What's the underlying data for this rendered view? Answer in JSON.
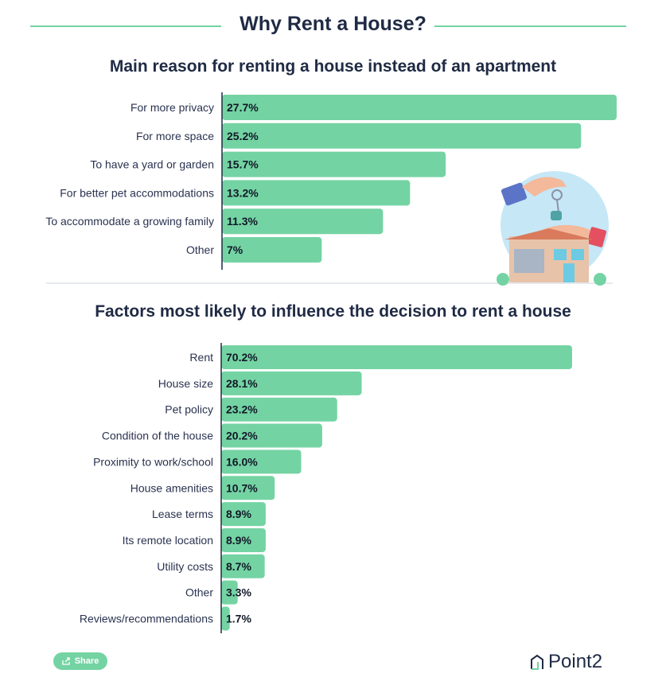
{
  "header": {
    "title": "Why Rent a House?"
  },
  "colors": {
    "bar": "#74d3a3",
    "text": "#1f2a44",
    "axis": "#1f2a44",
    "accent_line": "#74d3a3"
  },
  "chart_data": [
    {
      "type": "bar",
      "orientation": "horizontal",
      "title": "Main reason for renting a house instead of an apartment",
      "categories": [
        "For more privacy",
        "For more space",
        "To have a yard or garden",
        "For better pet accommodations",
        "To accommodate a growing family",
        "Other"
      ],
      "values": [
        27.7,
        25.2,
        15.7,
        13.2,
        11.3,
        7
      ],
      "labels": [
        "27.7%",
        "25.2%",
        "15.7%",
        "13.2%",
        "11.3%",
        "7%"
      ],
      "unit": "%",
      "xlim": [
        0,
        27.7
      ],
      "grid": false
    },
    {
      "type": "bar",
      "orientation": "horizontal",
      "title": "Factors most likely to influence the decision to rent a house",
      "categories": [
        "Rent",
        "House size",
        "Pet policy",
        "Condition of the house",
        "Proximity to work/school",
        "House amenities",
        "Lease terms",
        "Its remote location",
        "Utility costs",
        "Other",
        "Reviews/recommendations"
      ],
      "values": [
        70.2,
        28.1,
        23.2,
        20.2,
        16.0,
        10.7,
        8.9,
        8.9,
        8.7,
        3.3,
        1.7
      ],
      "labels": [
        "70.2%",
        "28.1%",
        "23.2%",
        "20.2%",
        "16.0%",
        "10.7%",
        "8.9%",
        "8.9%",
        "8.7%",
        "3.3%",
        "1.7%"
      ],
      "unit": "%",
      "xlim": [
        0,
        70.2
      ],
      "grid": false
    }
  ],
  "footer": {
    "share_label": "Share",
    "share_icon": "share-icon",
    "brand": "Point2",
    "brand_icon": "point2-logo-icon"
  }
}
